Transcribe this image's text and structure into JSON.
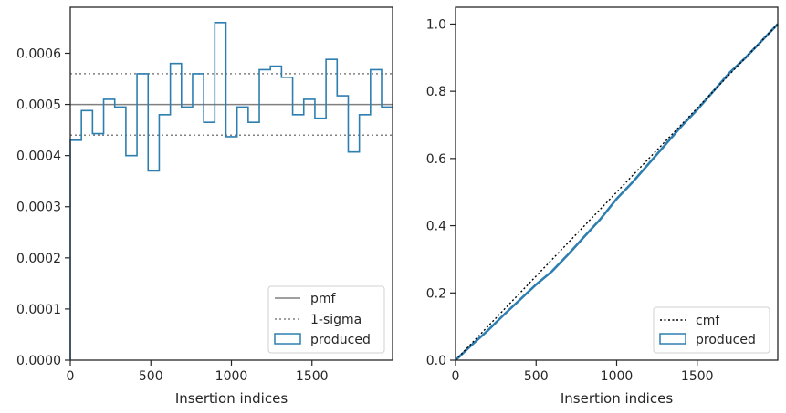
{
  "chart_data": [
    {
      "type": "step-histogram",
      "xlabel": "Insertion indices",
      "ylabel": "",
      "xlim": [
        0,
        2000
      ],
      "ylim": [
        0,
        0.00069
      ],
      "xticks": [
        0,
        500,
        1000,
        1500
      ],
      "xtick_labels": [
        "0",
        "500",
        "1000",
        "1500"
      ],
      "yticks": [
        0,
        0.0001,
        0.0002,
        0.0003,
        0.0004,
        0.0005,
        0.0006
      ],
      "ytick_labels": [
        "0.0000",
        "0.0001",
        "0.0002",
        "0.0003",
        "0.0004",
        "0.0005",
        "0.0006"
      ],
      "bin_edges": [
        0,
        69,
        138,
        207,
        276,
        345,
        414,
        483,
        552,
        621,
        690,
        759,
        828,
        897,
        966,
        1035,
        1104,
        1173,
        1242,
        1311,
        1380,
        1449,
        1518,
        1587,
        1656,
        1725,
        1794,
        1863,
        1932,
        2000
      ],
      "produced": [
        0.00043,
        0.000488,
        0.000443,
        0.00051,
        0.000495,
        0.0004,
        0.00056,
        0.00037,
        0.00048,
        0.00058,
        0.000495,
        0.00056,
        0.000465,
        0.00066,
        0.000437,
        0.000495,
        0.000465,
        0.000568,
        0.000575,
        0.000553,
        0.00048,
        0.00051,
        0.000473,
        0.000588,
        0.000517,
        0.000407,
        0.00048,
        0.000568,
        0.000495
      ],
      "pmf": 0.0005,
      "sigma_band": [
        0.00044,
        0.00056
      ],
      "grid": false,
      "legend_position": "lower right",
      "legend": [
        "pmf",
        "1-sigma",
        "produced"
      ],
      "colors": {
        "produced": "#2e7fb0",
        "pmf": "#808080",
        "sigma": "#808080"
      }
    },
    {
      "type": "line",
      "xlabel": "Insertion indices",
      "ylabel": "",
      "xlim": [
        0,
        2000
      ],
      "ylim": [
        0,
        1.05
      ],
      "xticks": [
        0,
        500,
        1000,
        1500
      ],
      "xtick_labels": [
        "0",
        "500",
        "1000",
        "1500"
      ],
      "yticks": [
        0,
        0.2,
        0.4,
        0.6,
        0.8,
        1.0
      ],
      "ytick_labels": [
        "0.0",
        "0.2",
        "0.4",
        "0.6",
        "0.8",
        "1.0"
      ],
      "series": [
        {
          "name": "cmf",
          "x": [
            0,
            2000
          ],
          "y": [
            0,
            1.0
          ]
        },
        {
          "name": "produced",
          "x": [
            0,
            100,
            200,
            300,
            400,
            500,
            600,
            700,
            800,
            900,
            1000,
            1100,
            1200,
            1300,
            1400,
            1500,
            1600,
            1700,
            1800,
            1900,
            2000
          ],
          "y": [
            0,
            0.045,
            0.088,
            0.135,
            0.18,
            0.225,
            0.265,
            0.315,
            0.368,
            0.42,
            0.48,
            0.53,
            0.585,
            0.64,
            0.695,
            0.745,
            0.8,
            0.855,
            0.9,
            0.95,
            1.0
          ]
        }
      ],
      "grid": false,
      "legend_position": "lower right",
      "legend": [
        "cmf",
        "produced"
      ],
      "colors": {
        "produced": "#2e7fb0",
        "cmf": "#000000"
      }
    }
  ]
}
